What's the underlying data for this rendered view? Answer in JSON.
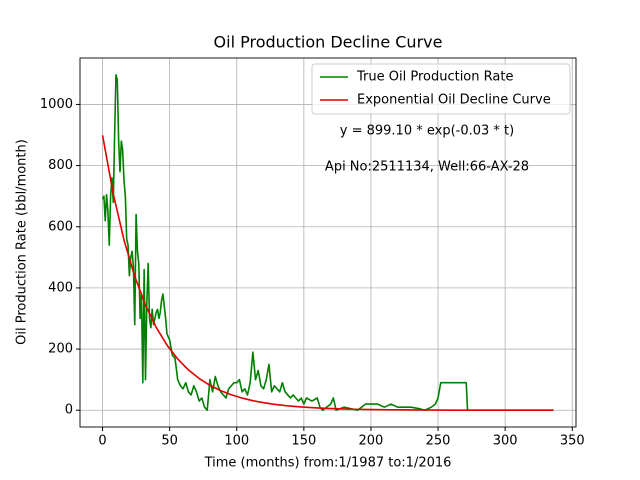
{
  "chart_data": {
    "type": "line",
    "title": "Oil Production Decline Curve",
    "xlabel": "Time (months) from:1/1987 to:1/2016",
    "ylabel": "Oil Production Rate (bbl/month)",
    "annotations": [
      "y = 899.10 * exp(-0.03 * t)",
      "Api No:2511134, Well:66-AX-28"
    ],
    "xlim": [
      -16.8,
      352.8
    ],
    "ylim": [
      -54.85,
      1151.85
    ],
    "xticks": [
      0,
      50,
      100,
      150,
      200,
      250,
      300,
      350
    ],
    "yticks": [
      0,
      200,
      400,
      600,
      800,
      1000
    ],
    "grid": true,
    "legend": "upper right",
    "series": [
      {
        "name": "True Oil Production Rate",
        "color": "#008000",
        "x": [
          0,
          1,
          2,
          3,
          4,
          5,
          6,
          7,
          8,
          9,
          10,
          11,
          12,
          13,
          14,
          15,
          16,
          17,
          18,
          19,
          20,
          21,
          22,
          23,
          24,
          25,
          26,
          27,
          28,
          29,
          30,
          31,
          32,
          33,
          34,
          35,
          36,
          37,
          38,
          39,
          40,
          41,
          42,
          43,
          44,
          45,
          46,
          47,
          48,
          50,
          52,
          54,
          56,
          58,
          60,
          62,
          64,
          66,
          68,
          70,
          72,
          74,
          76,
          78,
          80,
          82,
          84,
          86,
          88,
          90,
          92,
          94,
          96,
          98,
          100,
          102,
          104,
          106,
          108,
          110,
          112,
          114,
          116,
          118,
          120,
          122,
          124,
          126,
          128,
          130,
          132,
          134,
          136,
          138,
          140,
          142,
          144,
          146,
          148,
          150,
          152,
          156,
          160,
          162,
          164,
          170,
          172,
          174,
          180,
          190,
          196,
          200,
          205,
          210,
          215,
          220,
          225,
          230,
          236,
          240,
          245,
          248,
          250,
          252,
          256,
          260,
          265,
          271,
          272,
          280,
          300,
          320,
          336
        ],
        "values": [
          690,
          700,
          620,
          705,
          650,
          540,
          700,
          760,
          680,
          900,
          1097,
          1080,
          880,
          780,
          880,
          850,
          750,
          700,
          560,
          540,
          440,
          500,
          520,
          470,
          280,
          640,
          520,
          480,
          300,
          380,
          90,
          460,
          100,
          350,
          480,
          300,
          270,
          330,
          280,
          300,
          320,
          330,
          300,
          320,
          360,
          380,
          340,
          300,
          250,
          230,
          180,
          170,
          100,
          80,
          70,
          90,
          60,
          50,
          80,
          60,
          30,
          40,
          10,
          0,
          100,
          60,
          110,
          80,
          60,
          50,
          40,
          70,
          80,
          90,
          90,
          100,
          60,
          70,
          50,
          90,
          190,
          100,
          130,
          80,
          70,
          100,
          150,
          60,
          80,
          70,
          60,
          90,
          60,
          50,
          40,
          50,
          40,
          30,
          40,
          20,
          40,
          30,
          40,
          10,
          0,
          20,
          40,
          0,
          10,
          0,
          20,
          20,
          20,
          10,
          20,
          10,
          10,
          10,
          5,
          0,
          10,
          20,
          40,
          90,
          90,
          90,
          90,
          90,
          0,
          0,
          0,
          0,
          0
        ]
      },
      {
        "name": "Exponential Oil Decline Curve",
        "color": "#e00000",
        "x": [
          0,
          8,
          16,
          24,
          32,
          40,
          48,
          56,
          64,
          72,
          80,
          88,
          96,
          104,
          112,
          120,
          128,
          136,
          144,
          152,
          160,
          168,
          176,
          184,
          192,
          200,
          216,
          232,
          248,
          264,
          280,
          296,
          312,
          336
        ],
        "values": [
          899.1,
          707.3,
          556.3,
          437.7,
          344.3,
          270.8,
          213.0,
          167.6,
          131.8,
          103.7,
          81.6,
          64.2,
          50.5,
          39.7,
          31.2,
          24.6,
          19.3,
          15.2,
          12.0,
          9.4,
          7.4,
          5.8,
          4.6,
          3.6,
          2.8,
          2.2,
          1.4,
          0.9,
          0.5,
          0.3,
          0.2,
          0.1,
          0.1,
          0.0
        ]
      }
    ]
  }
}
